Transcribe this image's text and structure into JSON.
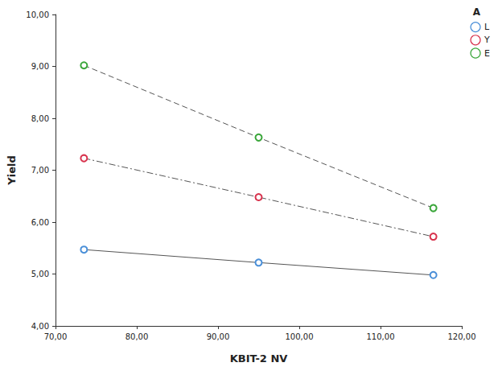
{
  "chart_data": {
    "type": "line",
    "x_label": "KBIT-2 NV",
    "y_label": "Yield",
    "legend_title": "A",
    "legend": "upper right",
    "grid": false,
    "x": [
      73.5,
      95,
      116.5
    ],
    "xlim": [
      70,
      120
    ],
    "xticks": [
      {
        "value": 70,
        "label": "70,00"
      },
      {
        "value": 80,
        "label": "80,00"
      },
      {
        "value": 90,
        "label": "90,00"
      },
      {
        "value": 100,
        "label": "100,00"
      },
      {
        "value": 110,
        "label": "110,00"
      },
      {
        "value": 120,
        "label": "120,00"
      }
    ],
    "ylim": [
      4,
      10
    ],
    "yticks": [
      {
        "value": 4,
        "label": "4,00"
      },
      {
        "value": 5,
        "label": "5,00"
      },
      {
        "value": 6,
        "label": "6,00"
      },
      {
        "value": 7,
        "label": "7,00"
      },
      {
        "value": 8,
        "label": "8,00"
      },
      {
        "value": 9,
        "label": "9,00"
      },
      {
        "value": 10,
        "label": "10,00"
      }
    ],
    "series": [
      {
        "name": "L",
        "color": "#4a8fd8",
        "marker": "circle",
        "line_style": "solid",
        "values": [
          5.47,
          5.22,
          4.98
        ]
      },
      {
        "name": "Y",
        "color": "#d8344e",
        "marker": "circle",
        "line_style": "dashdot",
        "values": [
          7.23,
          6.48,
          5.72
        ]
      },
      {
        "name": "E",
        "color": "#3aa63a",
        "marker": "circle",
        "line_style": "dashed",
        "values": [
          9.02,
          7.63,
          6.27
        ]
      }
    ]
  }
}
